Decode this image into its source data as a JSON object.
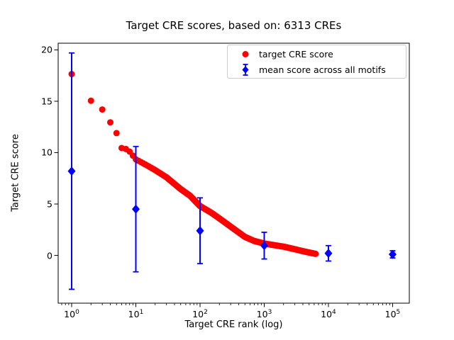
{
  "figure": {
    "title": "Target CRE scores, based on: 6313 CREs",
    "xlabel": "Target CRE rank (log)",
    "ylabel": "Target CRE score"
  },
  "chart_data": {
    "type": "scatter",
    "title": "Target CRE scores, based on: 6313 CREs",
    "xlabel": "Target CRE rank (log)",
    "ylabel": "Target CRE score",
    "x_scale": "log",
    "xlim_log10": [
      -0.21,
      5.26
    ],
    "ylim": [
      -4.65,
      20.65
    ],
    "x_tick_base": "10",
    "x_tick_exponents": [
      0,
      1,
      2,
      3,
      4,
      5
    ],
    "y_ticks": [
      0,
      5,
      10,
      15,
      20
    ],
    "grid": false,
    "colors": {
      "target_score": "#ff0000",
      "mean_score": "#0000ff",
      "spine": "#000000",
      "legend_border": "#cccccc"
    },
    "series": [
      {
        "name": "target CRE score",
        "marker": "circle",
        "color": "#ff0000",
        "max_rank": 6313,
        "note": "scores for ranks 1..6313; anchor points [rank, score] read from plot",
        "anchors": [
          [
            1,
            17.65
          ],
          [
            2,
            15.05
          ],
          [
            3,
            14.2
          ],
          [
            4,
            12.95
          ],
          [
            5,
            11.9
          ],
          [
            6,
            10.45
          ],
          [
            7,
            10.35
          ],
          [
            8,
            10.1
          ],
          [
            10,
            9.35
          ],
          [
            15,
            8.75
          ],
          [
            20,
            8.3
          ],
          [
            30,
            7.6
          ],
          [
            50,
            6.45
          ],
          [
            70,
            5.8
          ],
          [
            100,
            4.8
          ],
          [
            150,
            4.15
          ],
          [
            200,
            3.6
          ],
          [
            300,
            2.8
          ],
          [
            500,
            1.8
          ],
          [
            700,
            1.4
          ],
          [
            1000,
            1.15
          ],
          [
            2000,
            0.85
          ],
          [
            3000,
            0.6
          ],
          [
            4000,
            0.41
          ],
          [
            5000,
            0.28
          ],
          [
            6313,
            0.15
          ]
        ]
      },
      {
        "name": "mean score across all motifs",
        "marker": "diamond",
        "color": "#0000ff",
        "points": [
          {
            "rank": 1,
            "mean": 8.2,
            "err": 11.5
          },
          {
            "rank": 10,
            "mean": 4.5,
            "err": 6.1
          },
          {
            "rank": 100,
            "mean": 2.4,
            "err": 3.2
          },
          {
            "rank": 1000,
            "mean": 0.95,
            "err": 1.3
          },
          {
            "rank": 10000,
            "mean": 0.2,
            "err": 0.75
          },
          {
            "rank": 100000,
            "mean": 0.1,
            "err": 0.35
          }
        ]
      }
    ],
    "legend": {
      "position": "upper right",
      "entries": [
        "target CRE score",
        "mean score across all motifs"
      ]
    }
  }
}
